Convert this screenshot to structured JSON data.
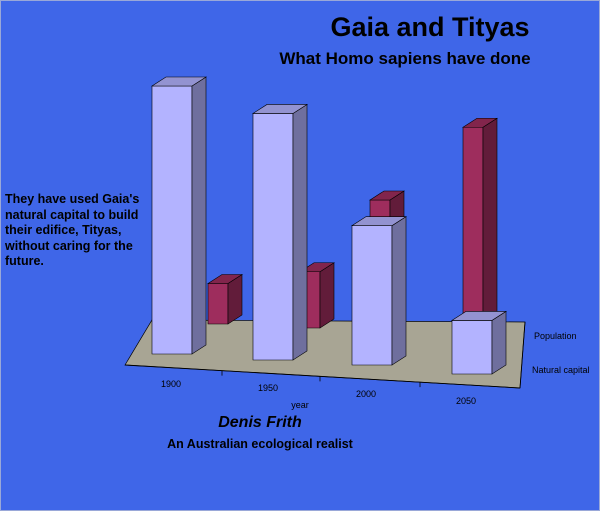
{
  "page": {
    "title": "Gaia and Tityas",
    "subtitle": "What Homo sapiens have done",
    "side_note": "They have used Gaia's natural capital to build their edifice, Tityas, without caring for the future.",
    "author": "Denis Frith",
    "author_desc": "An Australian ecological realist"
  },
  "chart_data": {
    "type": "bar",
    "title": "Gaia and Tityas",
    "subtitle": "What Homo sapiens have done",
    "xlabel": "year",
    "ylabel": "",
    "categories": [
      "1900",
      "1950",
      "2000",
      "2050"
    ],
    "series": [
      {
        "name": "Natural capital",
        "values": [
          100,
          92,
          52,
          20
        ]
      },
      {
        "name": "Population",
        "values": [
          18,
          25,
          60,
          95
        ]
      }
    ],
    "ylim": [
      0,
      100
    ],
    "grid": false,
    "three_d": true,
    "colors": {
      "Natural capital": "#b3b3ff",
      "Population": "#9e2d5d",
      "floor": "#a8a594",
      "background": "#3f66e8"
    }
  }
}
